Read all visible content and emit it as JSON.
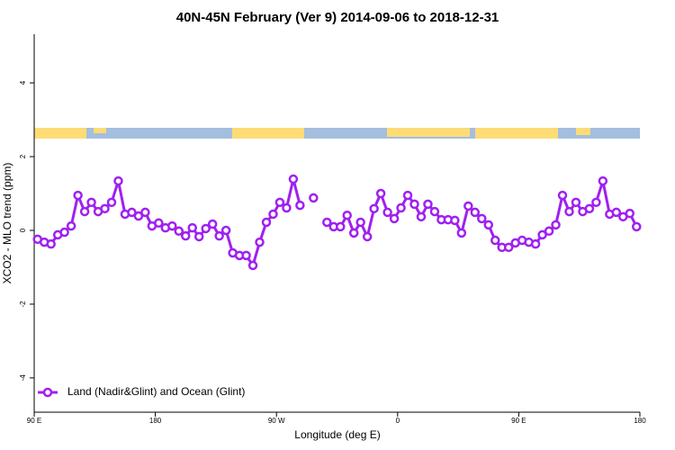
{
  "chart_data": {
    "type": "line",
    "title": "40N-45N February (Ver 9)   2014-09-06 to 2018-12-31",
    "x_label": "Longitude (deg E)",
    "y_label": "XCO2 - MLO trend (ppm)",
    "x": [
      92.5,
      97.5,
      102.5,
      107.5,
      112.5,
      117.5,
      122.5,
      127.5,
      132.5,
      137.5,
      142.5,
      147.5,
      152.5,
      157.5,
      162.5,
      167.5,
      172.5,
      177.5,
      182.5,
      187.5,
      192.5,
      197.5,
      202.5,
      207.5,
      212.5,
      217.5,
      222.5,
      227.5,
      232.5,
      237.5,
      242.5,
      247.5,
      252.5,
      257.5,
      262.5,
      267.5,
      272.5,
      277.5,
      282.5,
      287.5,
      292.5,
      297.5,
      302.5,
      307.5,
      312.5,
      317.5,
      322.5,
      327.5,
      332.5,
      337.5,
      342.5,
      347.5,
      352.5,
      357.5,
      362.5,
      367.5,
      372.5,
      377.5,
      382.5,
      387.5,
      392.5,
      397.5,
      402.5,
      407.5,
      412.5,
      417.5,
      422.5,
      427.5,
      432.5,
      437.5,
      442.5,
      447.5,
      452.5,
      457.5,
      462.5,
      467.5,
      472.5,
      477.5,
      482.5,
      487.5,
      492.5,
      497.5,
      502.5,
      507.5,
      512.5,
      517.5,
      522.5,
      527.5,
      532.5,
      537.5
    ],
    "series": [
      {
        "name": "Land (Nadir&Glint) and Ocean (Glint)",
        "color": "#a020f0",
        "values": [
          -0.24,
          -0.32,
          -0.37,
          -0.12,
          -0.05,
          0.12,
          0.95,
          0.51,
          0.76,
          0.51,
          0.59,
          0.76,
          1.34,
          0.44,
          0.49,
          0.39,
          0.49,
          0.12,
          0.2,
          0.07,
          0.12,
          -0.02,
          -0.15,
          0.07,
          -0.17,
          0.05,
          0.17,
          -0.15,
          0.0,
          -0.61,
          -0.68,
          -0.68,
          -0.95,
          -0.32,
          0.22,
          0.44,
          0.76,
          0.61,
          1.39,
          0.68,
          null,
          0.88,
          null,
          0.22,
          0.1,
          0.1,
          0.41,
          -0.07,
          0.22,
          -0.17,
          0.59,
          1.0,
          0.49,
          0.32,
          0.61,
          0.95,
          0.71,
          0.37,
          0.71,
          0.51,
          0.29,
          0.29,
          0.27,
          -0.07,
          0.66,
          0.49,
          0.32,
          0.15,
          -0.27,
          -0.46,
          -0.46,
          -0.34,
          -0.27,
          -0.32,
          -0.37,
          -0.12,
          -0.02,
          0.15,
          0.95,
          0.51,
          0.76,
          0.51,
          0.59,
          0.76,
          1.34,
          0.44,
          0.49,
          0.37,
          0.46,
          0.1
        ]
      }
    ],
    "xlim": [
      90,
      540
    ],
    "xticks": [
      {
        "value": 90,
        "label": "90 E"
      },
      180,
      {
        "value": 270,
        "label": "90 W"
      },
      {
        "value": 360,
        "label": "0"
      },
      {
        "value": 450,
        "label": "90 E"
      },
      {
        "value": 540,
        "label": "180"
      }
    ],
    "ylim": [
      -4.93,
      5.32
    ],
    "yticks": [
      -4,
      -2,
      0,
      2,
      4
    ],
    "legend": "bottom-left"
  }
}
